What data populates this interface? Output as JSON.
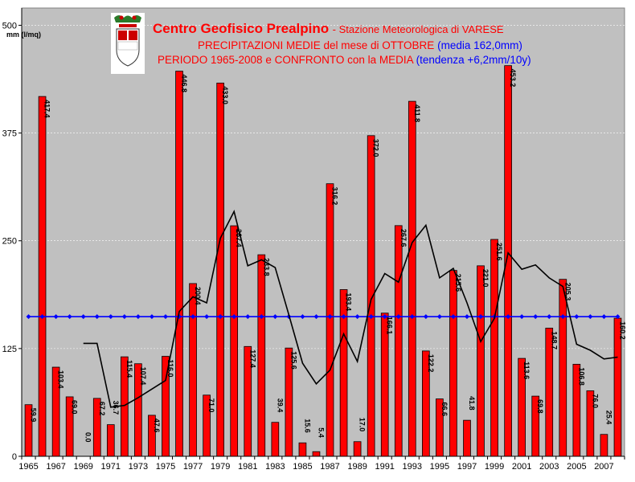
{
  "chart_data": {
    "type": "bar",
    "title": "Centro Geofisico Prealpino",
    "title_suffix": "Stazione Meteorologica di VARESE",
    "subtitle_line1": "PRECIPITAZIONI MEDIE del mese di OTTOBRE",
    "subtitle_line1_blue": "(media 162,0mm)",
    "subtitle_line2": "PERIODO 1965-2008 e CONFRONTO con la MEDIA",
    "subtitle_line2_blue": "(tendenza +6,2mm/10y)",
    "ylabel": "mm (l/mq)",
    "ylim": [
      0,
      520
    ],
    "yticks": [
      "0",
      "125",
      "250",
      "375",
      "500"
    ],
    "grid": true,
    "categories": [
      "1965",
      "1966",
      "1967",
      "1968",
      "1969",
      "1970",
      "1971",
      "1972",
      "1973",
      "1974",
      "1975",
      "1976",
      "1977",
      "1978",
      "1979",
      "1980",
      "1981",
      "1982",
      "1983",
      "1984",
      "1985",
      "1986",
      "1987",
      "1988",
      "1989",
      "1990",
      "1991",
      "1992",
      "1993",
      "1994",
      "1995",
      "1996",
      "1997",
      "1998",
      "1999",
      "2000",
      "2001",
      "2002",
      "2003",
      "2004",
      "2005",
      "2006",
      "2007",
      "2008"
    ],
    "xtick_labels": [
      "1965",
      "1967",
      "1969",
      "1971",
      "1973",
      "1975",
      "1977",
      "1979",
      "1981",
      "1983",
      "1985",
      "1987",
      "1989",
      "1991",
      "1993",
      "1995",
      "1997",
      "1999",
      "2001",
      "2003",
      "2005",
      "2007"
    ],
    "series": [
      {
        "type": "bar",
        "color": "#ff0000",
        "values": [
          59.9,
          417.4,
          103.4,
          69.0,
          0.0,
          67.2,
          36.7,
          115.4,
          107.4,
          47.6,
          116.0,
          446.8,
          200.4,
          71.0,
          433.0,
          267.4,
          127.4,
          233.8,
          39.4,
          125.6,
          15.6,
          5.4,
          316.2,
          193.4,
          17.0,
          372.0,
          166.1,
          267.6,
          411.8,
          122.2,
          66.6,
          215.6,
          41.8,
          221.0,
          251.6,
          453.2,
          113.6,
          69.8,
          148.7,
          205.3,
          106.8,
          76.0,
          25.4,
          160.2
        ],
        "labels": [
          "59.9",
          "417.4",
          "103.4",
          "69.0",
          "0.0",
          "67.2",
          "36.7",
          "115.4",
          "107.4",
          "47.6",
          "116.0",
          "446.8",
          "200.4",
          "71.0",
          "433.0",
          "267.4",
          "127.4",
          "233.8",
          "39.4",
          "125.6",
          "15.6",
          "5.4",
          "316.2",
          "193.4",
          "17.0",
          "372.0",
          "166.1",
          "267.6",
          "411.8",
          "122.2",
          "66.6",
          "215.6",
          "41.8",
          "221.0",
          "251.6",
          "453.2",
          "113.6",
          "69.8",
          "148.7",
          "205.3",
          "106.8",
          "76.0",
          "25.4",
          "160.2"
        ]
      },
      {
        "type": "line",
        "color": "#0000ff",
        "values": [
          162,
          162,
          162,
          162,
          162,
          162,
          162,
          162,
          162,
          162,
          162,
          162,
          162,
          162,
          162,
          162,
          162,
          162,
          162,
          162,
          162,
          162,
          162,
          162,
          162,
          162,
          162,
          162,
          162,
          162,
          162,
          162,
          162,
          162,
          162,
          162,
          162,
          162,
          162,
          162,
          162,
          162,
          162,
          162
        ]
      },
      {
        "type": "line",
        "color": "#000000",
        "values": [
          null,
          null,
          null,
          null,
          131,
          131,
          57,
          59,
          68,
          78,
          88,
          168,
          185,
          178,
          253,
          284,
          221,
          228,
          219,
          164,
          108,
          84,
          100,
          142,
          110,
          182,
          212,
          202,
          248,
          268,
          207,
          218,
          178,
          133,
          160,
          236,
          217,
          222,
          207,
          197,
          130,
          123,
          113,
          115
        ]
      }
    ]
  }
}
